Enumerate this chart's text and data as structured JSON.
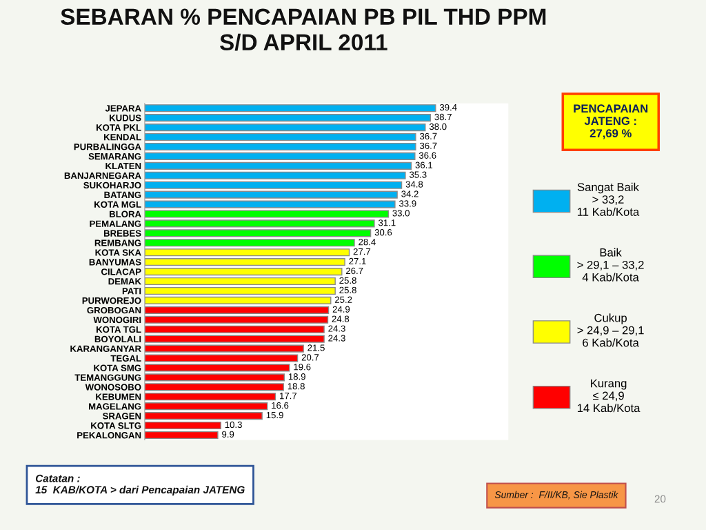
{
  "chart_data": {
    "type": "bar",
    "orientation": "horizontal",
    "stacked": true,
    "title": "SEBARAN % PENCAPAIAN PB PIL THD PPM\nS/D APRIL 2011",
    "categories": [
      "JEPARA",
      "KUDUS",
      "KOTA PKL",
      "KENDAL",
      "PURBALINGGA",
      "SEMARANG",
      "KLATEN",
      "BANJARNEGARA",
      "SUKOHARJO",
      "BATANG",
      "KOTA MGL",
      "BLORA",
      "PEMALANG",
      "BREBES",
      "REMBANG",
      "KOTA SKA",
      "BANYUMAS",
      "CILACAP",
      "DEMAK",
      "PATI",
      "PURWOREJO",
      "GROBOGAN",
      "WONOGIRI",
      "KOTA TGL",
      "BOYOLALI",
      "KARANGANYAR",
      "TEGAL",
      "KOTA SMG",
      "TEMANGGUNG",
      "WONOSOBO",
      "KEBUMEN",
      "MAGELANG",
      "SRAGEN",
      "KOTA SLTG",
      "PEKALONGAN"
    ],
    "series": [
      {
        "name": "Sangat Baik\n> 33,2\n11 Kab/Kota",
        "color": "#00b0f0",
        "values": [
          39.4,
          38.7,
          38.0,
          36.7,
          36.7,
          36.6,
          36.1,
          35.3,
          34.8,
          34.2,
          33.9,
          null,
          null,
          null,
          null,
          null,
          null,
          null,
          null,
          null,
          null,
          null,
          null,
          null,
          null,
          null,
          null,
          null,
          null,
          null,
          null,
          null,
          null,
          null,
          null
        ],
        "value_labels": [
          "39.4",
          "38.7",
          "38.0",
          "36.7",
          "36.7",
          "36.6",
          "36.1",
          "35.3",
          "34.8",
          "34.2",
          "33.9",
          null,
          null,
          null,
          null,
          null,
          null,
          null,
          null,
          null,
          null,
          null,
          null,
          null,
          null,
          null,
          null,
          null,
          null,
          null,
          null,
          null,
          null,
          null,
          null
        ]
      },
      {
        "name": "Baik\n> 29,1 – 33,2\n4 Kab/Kota",
        "color": "#00ff00",
        "values": [
          null,
          null,
          null,
          null,
          null,
          null,
          null,
          null,
          null,
          null,
          null,
          33.0,
          31.1,
          30.6,
          28.4,
          null,
          null,
          null,
          null,
          null,
          null,
          null,
          null,
          null,
          null,
          null,
          null,
          null,
          null,
          null,
          null,
          null,
          null,
          null,
          null
        ],
        "value_labels": [
          null,
          null,
          null,
          null,
          null,
          null,
          null,
          null,
          null,
          null,
          null,
          "33.0",
          "31.1",
          "30.6",
          "28.4",
          null,
          null,
          null,
          null,
          null,
          null,
          null,
          null,
          null,
          null,
          null,
          null,
          null,
          null,
          null,
          null,
          null,
          null,
          null,
          null
        ]
      },
      {
        "name": "Cukup\n> 24,9 – 29,1\n6 Kab/Kota",
        "color": "#ffff00",
        "values": [
          null,
          null,
          null,
          null,
          null,
          null,
          null,
          null,
          null,
          null,
          null,
          null,
          null,
          null,
          null,
          27.7,
          27.1,
          26.7,
          25.8,
          25.8,
          25.2,
          null,
          null,
          null,
          null,
          null,
          null,
          null,
          null,
          null,
          null,
          null,
          null,
          null,
          null
        ],
        "value_labels": [
          null,
          null,
          null,
          null,
          null,
          null,
          null,
          null,
          null,
          null,
          null,
          null,
          null,
          null,
          null,
          "27.7",
          "27.1",
          "26.7",
          "25.8",
          "25.8",
          "25.2",
          null,
          null,
          null,
          null,
          null,
          null,
          null,
          null,
          null,
          null,
          null,
          null,
          null,
          null
        ]
      },
      {
        "name": "Kurang\n≤ 24,9\n14 Kab/Kota",
        "color": "#ff0000",
        "values": [
          null,
          null,
          null,
          null,
          null,
          null,
          null,
          null,
          null,
          null,
          null,
          null,
          null,
          null,
          null,
          null,
          null,
          null,
          null,
          null,
          null,
          24.9,
          24.8,
          24.3,
          24.3,
          21.5,
          20.7,
          19.6,
          18.9,
          18.8,
          17.7,
          16.6,
          15.9,
          10.3,
          9.9
        ],
        "value_labels": [
          null,
          null,
          null,
          null,
          null,
          null,
          null,
          null,
          null,
          null,
          null,
          null,
          null,
          null,
          null,
          null,
          null,
          null,
          null,
          null,
          null,
          "24.9",
          "24.8",
          "24.3",
          "24.3",
          "21.5",
          "20.7",
          "19.6",
          "18.9",
          "18.8",
          "17.7",
          "16.6",
          "15.9",
          "10.3",
          "9.9"
        ]
      }
    ],
    "legend": "right",
    "tick_labels": "y",
    "annotations": [
      "PENCAPAIAN\nJATENG :\n27,69 %",
      "Catatan :\n15  KAB/KOTA > dari Pencapaian JATENG",
      "Sumber :  F/II/KB, Sie Plastik",
      "20"
    ]
  }
}
